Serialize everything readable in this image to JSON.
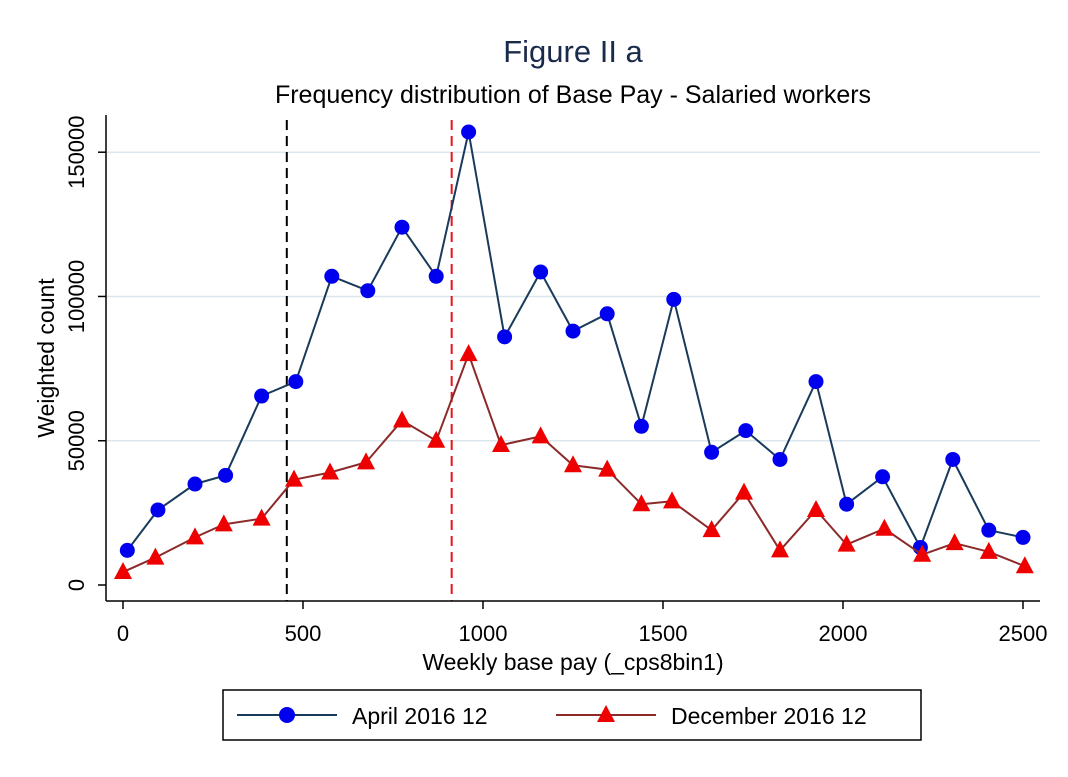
{
  "chart_data": {
    "type": "line",
    "title": "Figure II a",
    "subtitle": "Frequency distribution of Base Pay - Salaried workers",
    "xlabel": "Weekly base pay (_cps8bin1)",
    "ylabel": "Weighted count",
    "xlim": [
      0,
      2500
    ],
    "ylim": [
      0,
      157000
    ],
    "xticks": [
      0,
      500,
      1000,
      1500,
      2000,
      2500
    ],
    "yticks": [
      0,
      50000,
      100000,
      150000
    ],
    "xtick_labels": [
      "0",
      "500",
      "1000",
      "1500",
      "2000",
      "2500"
    ],
    "ytick_labels": [
      "0",
      "50000",
      "100000",
      "150000"
    ],
    "grid": "horizontal",
    "legend_position": "bottom",
    "vlines": [
      {
        "x": 455,
        "color": "#000000",
        "style": "dashed"
      },
      {
        "x": 913,
        "color": "#e8141a",
        "style": "dashed"
      }
    ],
    "series": [
      {
        "name": "April 2016 12",
        "color": "#1a3a5c",
        "marker_color": "#0000ee",
        "marker": "circle",
        "points": [
          [
            12,
            12000
          ],
          [
            97,
            26000
          ],
          [
            200,
            35000
          ],
          [
            285,
            38000
          ],
          [
            385,
            65500
          ],
          [
            480,
            70500
          ],
          [
            580,
            107000
          ],
          [
            680,
            102000
          ],
          [
            775,
            124000
          ],
          [
            870,
            107000
          ],
          [
            960,
            157000
          ],
          [
            1060,
            86000
          ],
          [
            1160,
            108500
          ],
          [
            1250,
            88000
          ],
          [
            1345,
            94000
          ],
          [
            1440,
            55000
          ],
          [
            1530,
            99000
          ],
          [
            1635,
            46000
          ],
          [
            1730,
            53500
          ],
          [
            1825,
            43500
          ],
          [
            1925,
            70500
          ],
          [
            2010,
            28000
          ],
          [
            2110,
            37500
          ],
          [
            2215,
            13000
          ],
          [
            2305,
            43500
          ],
          [
            2405,
            19000
          ],
          [
            2500,
            16500
          ]
        ]
      },
      {
        "name": "December 2016 12",
        "color": "#8c2a2a",
        "marker_color": "#ee0000",
        "marker": "triangle",
        "points": [
          [
            0,
            4500
          ],
          [
            90,
            9500
          ],
          [
            200,
            16500
          ],
          [
            280,
            21000
          ],
          [
            385,
            23000
          ],
          [
            475,
            36500
          ],
          [
            575,
            39000
          ],
          [
            675,
            42500
          ],
          [
            775,
            57000
          ],
          [
            870,
            50000
          ],
          [
            960,
            80000
          ],
          [
            1050,
            48500
          ],
          [
            1160,
            51500
          ],
          [
            1250,
            41500
          ],
          [
            1345,
            40000
          ],
          [
            1440,
            28000
          ],
          [
            1525,
            29000
          ],
          [
            1635,
            19000
          ],
          [
            1725,
            32000
          ],
          [
            1825,
            12000
          ],
          [
            1925,
            26000
          ],
          [
            2010,
            14000
          ],
          [
            2115,
            19500
          ],
          [
            2220,
            10500
          ],
          [
            2310,
            14500
          ],
          [
            2405,
            11500
          ],
          [
            2505,
            6500
          ]
        ]
      }
    ]
  }
}
